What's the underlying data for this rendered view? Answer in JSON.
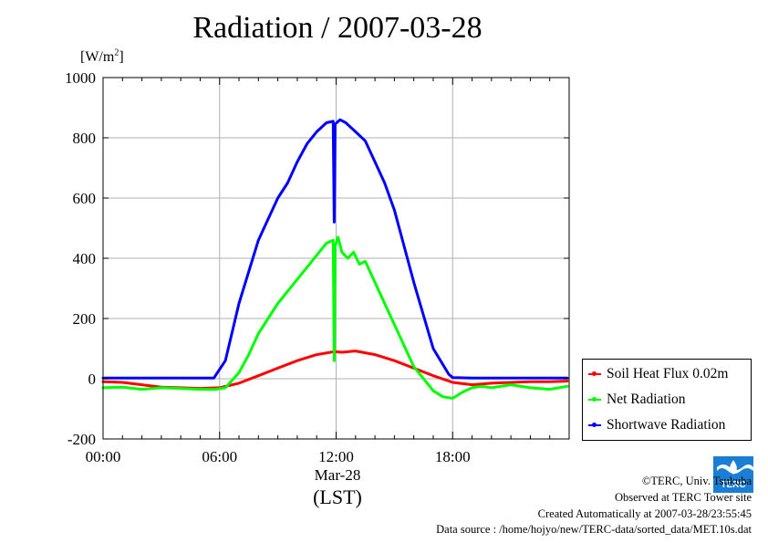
{
  "chart_data": {
    "type": "line",
    "title": "Radiation / 2007-03-28",
    "ylabel_text": "[W/m",
    "ylabel_sup": "2",
    "ylabel_close": "]",
    "xlabel_date": "Mar-28",
    "xlabel_tz": "(LST)",
    "xlim": [
      0,
      24
    ],
    "ylim": [
      -200,
      1000
    ],
    "x_ticks": [
      {
        "value": 0,
        "label": "00:00"
      },
      {
        "value": 6,
        "label": "06:00"
      },
      {
        "value": 12,
        "label": "12:00"
      },
      {
        "value": 18,
        "label": "18:00"
      }
    ],
    "y_ticks": [
      {
        "value": -200,
        "label": "-200"
      },
      {
        "value": 0,
        "label": "0"
      },
      {
        "value": 200,
        "label": "200"
      },
      {
        "value": 400,
        "label": "400"
      },
      {
        "value": 600,
        "label": "600"
      },
      {
        "value": 800,
        "label": "800"
      },
      {
        "value": 1000,
        "label": "1000"
      }
    ],
    "grid": true,
    "legend_position": "right-bottom",
    "series": [
      {
        "name": "Soil Heat Flux 0.02m",
        "color": "#ff0000",
        "x": [
          0,
          1,
          2,
          3,
          4,
          5,
          6,
          7,
          8,
          9,
          10,
          11,
          11.9,
          12.3,
          13,
          14,
          15,
          16,
          17,
          18,
          19,
          20,
          21,
          22,
          23,
          23.9
        ],
        "y": [
          -10,
          -12,
          -20,
          -28,
          -30,
          -32,
          -30,
          -15,
          10,
          35,
          60,
          80,
          90,
          88,
          92,
          80,
          60,
          35,
          10,
          -12,
          -20,
          -15,
          -12,
          -10,
          -10,
          -8
        ]
      },
      {
        "name": "Net Radiation",
        "color": "#00ff00",
        "x": [
          0,
          1,
          2,
          3,
          4,
          5,
          5.8,
          6.3,
          7,
          7.5,
          8,
          9,
          10,
          10.5,
          11,
          11.5,
          11.85,
          11.9,
          11.95,
          12.1,
          12.3,
          12.6,
          12.9,
          13.2,
          13.5,
          14,
          14.5,
          15,
          16,
          17,
          17.5,
          18,
          18.5,
          19,
          19.5,
          20,
          21,
          22,
          23,
          23.9
        ],
        "y": [
          -30,
          -28,
          -35,
          -30,
          -32,
          -35,
          -35,
          -30,
          20,
          80,
          150,
          250,
          330,
          370,
          410,
          450,
          460,
          60,
          440,
          470,
          420,
          400,
          420,
          380,
          390,
          320,
          250,
          180,
          40,
          -40,
          -60,
          -65,
          -45,
          -30,
          -25,
          -30,
          -20,
          -30,
          -35,
          -25
        ]
      },
      {
        "name": "Shortwave Radiation",
        "color": "#0000ff",
        "x": [
          0,
          1,
          2,
          3,
          4,
          5,
          5.7,
          6.3,
          7,
          8,
          9,
          9.5,
          10,
          10.5,
          11,
          11.5,
          11.85,
          11.9,
          11.95,
          12.2,
          12.5,
          13,
          13.5,
          14,
          14.5,
          15,
          16,
          17,
          17.8,
          18,
          19,
          20,
          21,
          22,
          23,
          23.9
        ],
        "y": [
          2,
          2,
          2,
          2,
          2,
          2,
          2,
          60,
          250,
          460,
          600,
          650,
          720,
          780,
          820,
          850,
          855,
          520,
          845,
          860,
          850,
          820,
          790,
          720,
          650,
          560,
          320,
          100,
          15,
          4,
          2,
          2,
          2,
          2,
          2,
          2
        ]
      }
    ]
  },
  "footer": {
    "copyright": "©TERC, Univ. Tsukuba",
    "observed": "Observed at TERC Tower site",
    "created": "Created Automatically at 2007-03-28/23:55:45",
    "source": "Data source : /home/hojyo/new/TERC-data/sorted_data/MET.10s.dat"
  },
  "logo": {
    "text": "TERC",
    "color": "#1a7fd4"
  }
}
